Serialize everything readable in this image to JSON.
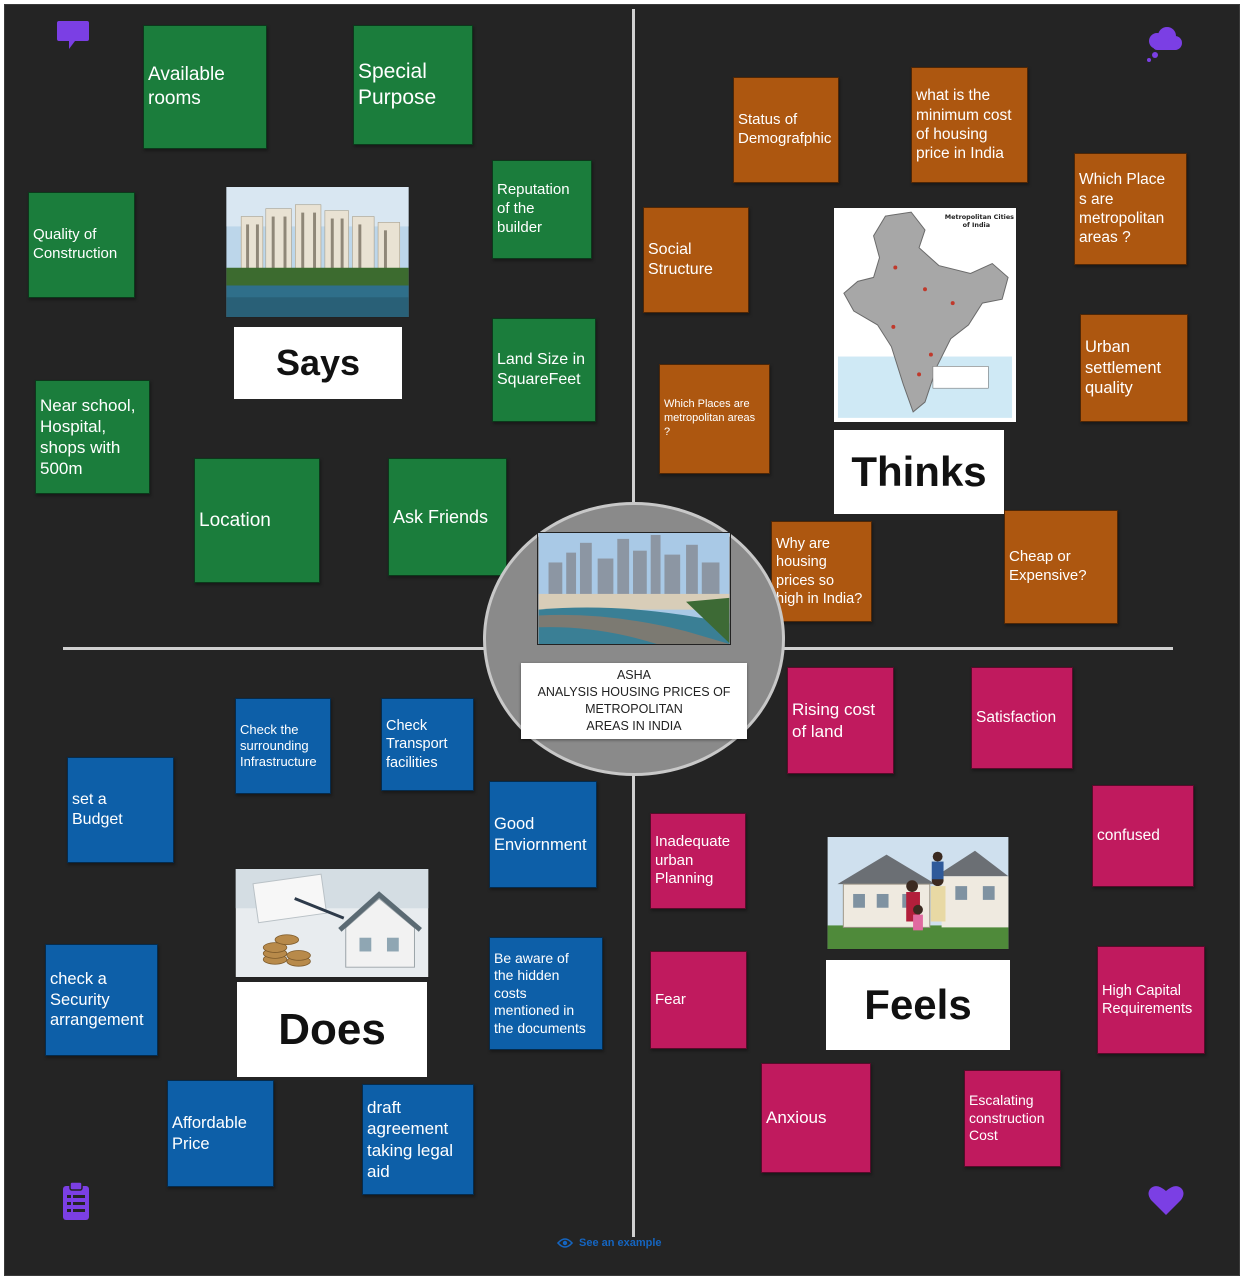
{
  "canvas": {
    "title_label": "ASHA\nANALYSIS HOUSING PRICES OF\nMETROPOLITAN\nAREAS IN INDIA"
  },
  "quadrants": {
    "says": {
      "label": "Says",
      "color": "#1b7d3c"
    },
    "thinks": {
      "label": "Thinks",
      "color": "#ad5710"
    },
    "does": {
      "label": "Does",
      "color": "#0d5fa8"
    },
    "feels": {
      "label": "Feels",
      "color": "#c01a5e"
    }
  },
  "says_notes": [
    "Available\nrooms",
    "Special\nPurpose",
    "Reputation\nof the\nbuilder",
    "Quality of\nConstruction",
    "Land Size in\nSquareFeet",
    "Near school,\nHospital,\nshops with\n500m",
    "Location",
    "Ask Friends"
  ],
  "thinks_notes": [
    "Status of\nDemografphic",
    "what is the\nminimum cost\nof  housing\nprice  in India",
    "Which  Place\ns  are\nmetropolitan\nareas ?",
    "Social\nStructure",
    "Urban\nsettlement\nquality",
    "Which  Places  are\nmetropolitan areas\n?",
    "Why are\nhousing\nprices  so\nhigh in India?",
    "Cheap or\nExpensive?"
  ],
  "does_notes": [
    "Check the\nsurrounding\nInfrastructure",
    "Check\nTransport\nfacilities",
    "set a\nBudget",
    "Good\nEnviornment",
    "check a\nSecurity\narrangement",
    "Be aware of\nthe hidden\ncosts\nmentioned in\nthe documents",
    "Affordable\nPrice",
    "draft\nagreement\ntaking legal\naid"
  ],
  "feels_notes": [
    "Rising cost\nof land",
    "Satisfaction",
    "confused",
    "Inadequate\nurban\nPlanning",
    "Fear",
    "High Capital\nRequirements",
    "Anxious",
    "Escalating\nconstruction\nCost"
  ],
  "map_image": {
    "title": "Metropolitan Cities\nof India"
  },
  "icons": {
    "says": "speech-bubble-icon",
    "thinks": "thought-cloud-icon",
    "does": "clipboard-icon",
    "feels": "heart-icon",
    "example": "eye-icon"
  },
  "footer": {
    "see_example": "See an example"
  }
}
